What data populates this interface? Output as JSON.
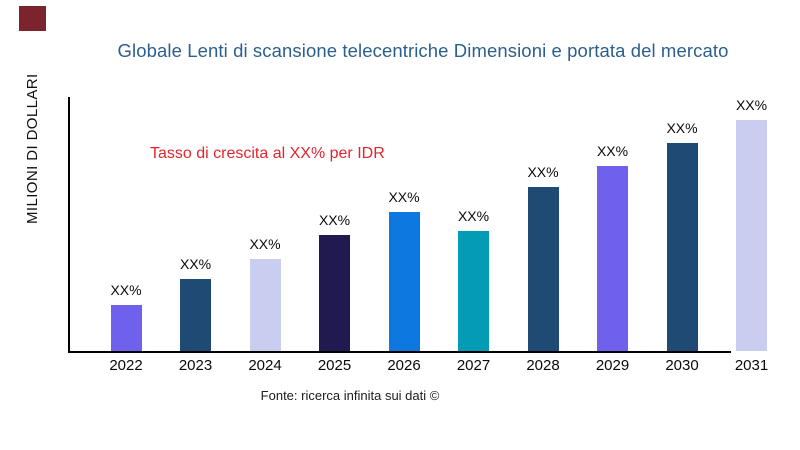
{
  "page": {
    "source": "Fonte: ricerca infinita sui dati ©"
  },
  "colors": {
    "title": "#2b5f8f",
    "annotation": "#e0262c",
    "axis": "#000000",
    "brand_square": "#7b242e",
    "bar_label_text": "#0a0a0a"
  },
  "chart_data": {
    "type": "bar",
    "title": "Globale Lenti di scansione telecentriche Dimensioni e portata del mercato",
    "annotation": "Tasso di crescita al XX% per IDR",
    "ylabel": "MILIONI DI DOLLARI",
    "xlabel": "",
    "grid": "off",
    "legend": "none",
    "categories": [
      "2022",
      "2023",
      "2024",
      "2025",
      "2026",
      "2027",
      "2028",
      "2029",
      "2030",
      "2031"
    ],
    "bar_value_labels": [
      "XX%",
      "XX%",
      "XX%",
      "XX%",
      "XX%",
      "XX%",
      "XX%",
      "XX%",
      "XX%",
      "XX%"
    ],
    "values_rel_pct_of_max": [
      20,
      31,
      40,
      50,
      60,
      52,
      71,
      80,
      90,
      100
    ],
    "bar_colors": [
      "#7061ec",
      "#1f4a73",
      "#c9cdef",
      "#211a50",
      "#0d78e0",
      "#049cb5",
      "#1f4a73",
      "#7061ec",
      "#1f4a73",
      "#c9cdef"
    ],
    "ylim_note_axis_unlabeled": true
  }
}
